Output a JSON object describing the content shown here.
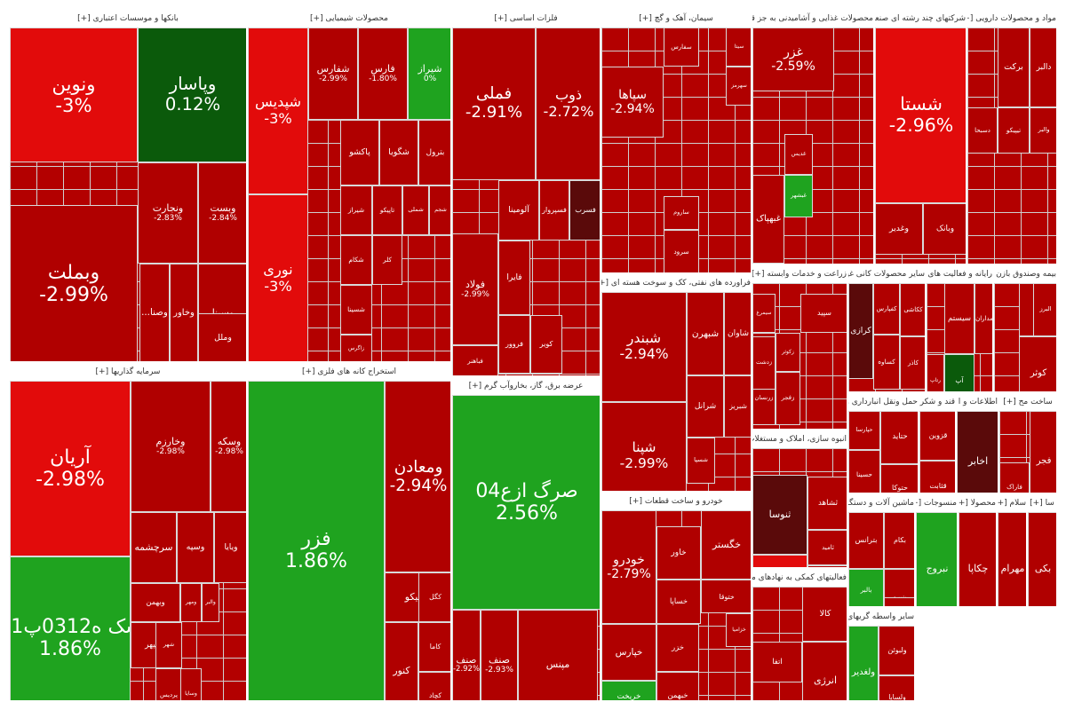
{
  "colors": {
    "deep_red": "#b00000",
    "red": "#d00000",
    "bright_red": "#e20b0b",
    "dark_green": "#0b5a0b",
    "green": "#1fa31f",
    "bright_green": "#2dbd2d",
    "maroon": "#5a0a0a",
    "header_bg": "#ffffff",
    "grid": "#cfcfcf"
  },
  "chart_data": {
    "type": "treemap",
    "sectors": [
      {
        "name": "بانکها و موسسات اعتباری [+]",
        "tiles": [
          {
            "symbol": "ونوین",
            "change": "-3%",
            "color": "bright_red"
          },
          {
            "symbol": "وپاسار",
            "change": "0.12%",
            "color": "dark_green"
          },
          {
            "symbol": "وبملت",
            "change": "-2.99%",
            "color": "deep_red"
          },
          {
            "symbol": "ونجارت",
            "change": "-2.83%",
            "color": "deep_red"
          },
          {
            "symbol": "وبست",
            "change": "-2.84%",
            "color": "deep_red"
          },
          {
            "symbol": "وسینا",
            "change": "",
            "color": "deep_red"
          },
          {
            "symbol": "وخاور",
            "change": "",
            "color": "deep_red"
          },
          {
            "symbol": "...وصنا",
            "change": "",
            "color": "deep_red"
          },
          {
            "symbol": "وملل",
            "change": "",
            "color": "deep_red"
          }
        ]
      },
      {
        "name": "محصولات شیمیایی [+]",
        "tiles": [
          {
            "symbol": "شپدیس",
            "change": "-3%",
            "color": "bright_red"
          },
          {
            "symbol": "نوری",
            "change": "-3%",
            "color": "bright_red"
          },
          {
            "symbol": "شفارس",
            "change": "-2.99%",
            "color": "deep_red"
          },
          {
            "symbol": "فارس",
            "change": "-1.80%",
            "color": "deep_red"
          },
          {
            "symbol": "شیراز",
            "change": "0%",
            "color": "green"
          },
          {
            "symbol": "شگویا",
            "change": "",
            "color": "deep_red"
          },
          {
            "symbol": "پاکشو",
            "change": "",
            "color": "deep_red"
          },
          {
            "symbol": "بترول",
            "change": "",
            "color": "deep_red"
          },
          {
            "symbol": "شجم",
            "change": "",
            "color": "deep_red"
          },
          {
            "symbol": "شملی",
            "change": "",
            "color": "deep_red"
          },
          {
            "symbol": "تاپیکو",
            "change": "",
            "color": "deep_red"
          },
          {
            "symbol": "شیراز",
            "change": "",
            "color": "deep_red"
          },
          {
            "symbol": "کلر",
            "change": "",
            "color": "deep_red"
          },
          {
            "symbol": "شکام",
            "change": "",
            "color": "deep_red"
          },
          {
            "symbol": "شسینا",
            "change": "",
            "color": "deep_red"
          },
          {
            "symbol": "زاگرس",
            "change": "",
            "color": "deep_red"
          }
        ]
      },
      {
        "name": "فلزات اساسی [+]",
        "tiles": [
          {
            "symbol": "فملی",
            "change": "-2.91%",
            "color": "deep_red"
          },
          {
            "symbol": "ذوب",
            "change": "-2.72%",
            "color": "deep_red"
          },
          {
            "symbol": "فولاد",
            "change": "-2.99%",
            "color": "deep_red"
          },
          {
            "symbol": "فسرب",
            "change": "",
            "color": "maroon"
          },
          {
            "symbol": "آلومینا",
            "change": "",
            "color": "deep_red"
          },
          {
            "symbol": "فسپروار",
            "change": "",
            "color": "deep_red"
          },
          {
            "symbol": "فایرا",
            "change": "",
            "color": "deep_red"
          },
          {
            "symbol": "فزوت",
            "change": "",
            "color": "deep_red"
          },
          {
            "symbol": "فروور",
            "change": "",
            "color": "deep_red"
          },
          {
            "symbol": "فباهنر",
            "change": "",
            "color": "deep_red"
          },
          {
            "symbol": "کویر",
            "change": "",
            "color": "deep_red"
          }
        ]
      },
      {
        "name": "سیمان، آهک و گچ [+]",
        "tiles": [
          {
            "symbol": "سهرمز",
            "change": "",
            "color": "deep_red"
          },
          {
            "symbol": "سپاها",
            "change": "-2.94%",
            "color": "deep_red"
          },
          {
            "symbol": "سفارس",
            "change": "",
            "color": "deep_red"
          },
          {
            "symbol": "سرود",
            "change": "",
            "color": "deep_red"
          },
          {
            "symbol": "ساروم",
            "change": "",
            "color": "deep_red"
          },
          {
            "symbol": "سیتا",
            "change": "",
            "color": "deep_red"
          }
        ]
      },
      {
        "name": "محصولات غذایی و آشامیدنی به جز قند و شکر [+]",
        "tiles": [
          {
            "symbol": "غزر",
            "change": "-2.59%",
            "color": "deep_red"
          },
          {
            "symbol": "غدیس",
            "change": "",
            "color": "deep_red"
          },
          {
            "symbol": "غبهپاک",
            "change": "",
            "color": "deep_red"
          },
          {
            "symbol": "غبشهر",
            "change": "",
            "color": "green"
          }
        ]
      },
      {
        "name": "شرکتهای چند رشته ای صنعتی [+]",
        "tiles": [
          {
            "symbol": "شستا",
            "change": "-2.96%",
            "color": "bright_red"
          },
          {
            "symbol": "وبانک",
            "change": "",
            "color": "deep_red"
          },
          {
            "symbol": "وغدیر",
            "change": "",
            "color": "deep_red"
          }
        ]
      },
      {
        "name": "مواد و محصولات دارویی [+]",
        "tiles": [
          {
            "symbol": "دالبر",
            "change": "",
            "color": "deep_red"
          },
          {
            "symbol": "برکت",
            "change": "",
            "color": "deep_red"
          },
          {
            "symbol": "تیپیکو",
            "change": "",
            "color": "deep_red"
          },
          {
            "symbol": "دسبحا",
            "change": "",
            "color": "deep_red"
          },
          {
            "symbol": "والبر",
            "change": "",
            "color": "deep_red"
          }
        ]
      },
      {
        "name": "سرمایه گذاریها [+]",
        "tiles": [
          {
            "symbol": "آریان",
            "change": "-2.98%",
            "color": "bright_red"
          },
          {
            "symbol": "وخارزم",
            "change": "-2.98%",
            "color": "deep_red"
          },
          {
            "symbol": "وسکه",
            "change": "-2.98%",
            "color": "deep_red"
          },
          {
            "symbol": "سک ه0312پ01",
            "change": "1.86%",
            "color": "green"
          },
          {
            "symbol": "سرچشمه",
            "change": "",
            "color": "deep_red"
          },
          {
            "symbol": "وسپه",
            "change": "",
            "color": "deep_red"
          },
          {
            "symbol": "ویایا",
            "change": "",
            "color": "deep_red"
          },
          {
            "symbol": "وبهمن",
            "change": "",
            "color": "deep_red"
          },
          {
            "symbol": "ومهر",
            "change": "",
            "color": "deep_red"
          },
          {
            "symbol": "والبر",
            "change": "",
            "color": "deep_red"
          },
          {
            "symbol": "وسپهر",
            "change": "",
            "color": "deep_red"
          },
          {
            "symbol": "شهر",
            "change": "",
            "color": "deep_red"
          },
          {
            "symbol": "پردیس",
            "change": "",
            "color": "deep_red"
          },
          {
            "symbol": "وسایا",
            "change": "",
            "color": "deep_red"
          }
        ]
      },
      {
        "name": "استخراج کانه های فلزی [+]",
        "tiles": [
          {
            "symbol": "فزر",
            "change": "1.86%",
            "color": "green"
          },
          {
            "symbol": "ومعادن",
            "change": "-2.94%",
            "color": "deep_red"
          },
          {
            "symbol": "تاصیکو",
            "change": "",
            "color": "deep_red"
          },
          {
            "symbol": "کگل",
            "change": "",
            "color": "deep_red"
          },
          {
            "symbol": "کاما",
            "change": "",
            "color": "deep_red"
          },
          {
            "symbol": "کچاد",
            "change": "",
            "color": "deep_red"
          },
          {
            "symbol": "کنور",
            "change": "",
            "color": "deep_red"
          }
        ]
      },
      {
        "name": "عرضه برق، گاز، بخاروآب گرم [+]",
        "tiles": [
          {
            "symbol": "صرگ ازع04",
            "change": "2.56%",
            "color": "green"
          },
          {
            "symbol": "صنف",
            "change": "-2.92%",
            "color": "deep_red"
          },
          {
            "symbol": "صنف",
            "change": "-2.93%",
            "color": "deep_red"
          },
          {
            "symbol": "مپنس",
            "change": "",
            "color": "deep_red"
          }
        ]
      },
      {
        "name": "فراورده های نفتی، کک و سوخت هسته ای [+]",
        "tiles": [
          {
            "symbol": "شبندر",
            "change": "-2.94%",
            "color": "deep_red"
          },
          {
            "symbol": "شپنا",
            "change": "-2.99%",
            "color": "deep_red"
          },
          {
            "symbol": "شبهرن",
            "change": "",
            "color": "deep_red"
          },
          {
            "symbol": "شاوان",
            "change": "",
            "color": "deep_red"
          },
          {
            "symbol": "شبریز",
            "change": "",
            "color": "deep_red"
          },
          {
            "symbol": "شسپا",
            "change": "",
            "color": "deep_red"
          },
          {
            "symbol": "شرانل",
            "change": "",
            "color": "deep_red"
          }
        ]
      },
      {
        "name": "خودرو و ساخت قطعات [+]",
        "tiles": [
          {
            "symbol": "خودرو",
            "change": "-2.79%",
            "color": "deep_red"
          },
          {
            "symbol": "خگستر",
            "change": "",
            "color": "deep_red"
          },
          {
            "symbol": "خساپا",
            "change": "",
            "color": "deep_red"
          },
          {
            "symbol": "خزر",
            "change": "",
            "color": "deep_red"
          },
          {
            "symbol": "ختوقا",
            "change": "",
            "color": "deep_red"
          },
          {
            "symbol": "خکار",
            "change": "",
            "color": "deep_red"
          },
          {
            "symbol": "خپارس",
            "change": "",
            "color": "deep_red"
          },
          {
            "symbol": "خزامیا",
            "change": "",
            "color": "deep_red"
          },
          {
            "symbol": "خاور",
            "change": "",
            "color": "deep_red"
          },
          {
            "symbol": "خریخت",
            "change": "3.00%",
            "color": "green"
          },
          {
            "symbol": "خبهمن",
            "change": "",
            "color": "deep_red"
          }
        ]
      },
      {
        "name": "زراعت و خدمات وابسته [+]",
        "tiles": [
          {
            "symbol": "سیمرغ",
            "change": "",
            "color": "deep_red"
          },
          {
            "symbol": "زماهان",
            "change": "",
            "color": "deep_red"
          },
          {
            "symbol": "زرنسان",
            "change": "",
            "color": "deep_red"
          },
          {
            "symbol": "زکوثر",
            "change": "",
            "color": "deep_red"
          },
          {
            "symbol": "زدشت",
            "change": "",
            "color": "deep_red"
          },
          {
            "symbol": "زفجر",
            "change": "",
            "color": "deep_red"
          },
          {
            "symbol": "سپید",
            "change": "",
            "color": "deep_red"
          }
        ]
      },
      {
        "name": "سایر محصولات کانی غیر [+]",
        "tiles": [
          {
            "symbol": "کرازی",
            "change": "",
            "color": "maroon"
          },
          {
            "symbol": "کفپارس",
            "change": "",
            "color": "deep_red"
          },
          {
            "symbol": "کساوه",
            "change": "",
            "color": "deep_red"
          },
          {
            "symbol": "کاذر",
            "change": "",
            "color": "deep_red"
          },
          {
            "symbol": "ککاشی",
            "change": "",
            "color": "deep_red"
          }
        ]
      },
      {
        "name": "رایانه و فعالیت های و [+]",
        "tiles": [
          {
            "symbol": "سیستم",
            "change": "",
            "color": "deep_red"
          },
          {
            "symbol": "آپ",
            "change": "",
            "color": "dark_green"
          },
          {
            "symbol": "رتاپ",
            "change": "",
            "color": "deep_red"
          },
          {
            "symbol": "مداران",
            "change": "",
            "color": "deep_red"
          }
        ]
      },
      {
        "name": "بیمه وصندوق بازن [+]",
        "tiles": [
          {
            "symbol": "دانا",
            "change": "",
            "color": "deep_red"
          },
          {
            "symbol": "البرز",
            "change": "",
            "color": "deep_red"
          },
          {
            "symbol": "کوثر",
            "change": "",
            "color": "deep_red"
          }
        ]
      },
      {
        "name": "انبوه سازی، املاک و مستغلات [+]",
        "tiles": [
          {
            "symbol": "ثشاهد",
            "change": "",
            "color": "deep_red"
          },
          {
            "symbol": "ثامید",
            "change": "",
            "color": "deep_red"
          },
          {
            "symbol": "ثنوسا",
            "change": "",
            "color": "maroon"
          },
          {
            "symbol": "ثباغ",
            "change": "",
            "color": "deep_red"
          },
          {
            "symbol": "ثنهسار",
            "change": "",
            "color": "bright_red"
          }
        ]
      },
      {
        "name": "حمل ونقل انبارداری و [+]",
        "tiles": [
          {
            "symbol": "حتاید",
            "change": "",
            "color": "deep_red"
          },
          {
            "symbol": "حپارسا",
            "change": "",
            "color": "deep_red"
          },
          {
            "symbol": "حسینا",
            "change": "",
            "color": "deep_red"
          },
          {
            "symbol": "حتوکا",
            "change": "",
            "color": "deep_red"
          }
        ]
      },
      {
        "name": "قند و شکر [+]",
        "tiles": [
          {
            "symbol": "قزوین",
            "change": "",
            "color": "deep_red"
          },
          {
            "symbol": "قثابت",
            "change": "",
            "color": "deep_red"
          }
        ]
      },
      {
        "name": "اطلاعات و ا [+]",
        "tiles": [
          {
            "symbol": "اخابر",
            "change": "",
            "color": "maroon"
          }
        ]
      },
      {
        "name": "ساخت مح [+]",
        "tiles": [
          {
            "symbol": "فاراک",
            "change": "",
            "color": "deep_red"
          },
          {
            "symbol": "فجر",
            "change": "",
            "color": "deep_red"
          }
        ]
      },
      {
        "name": "ماشین آلات و دستگاه [+]",
        "tiles": [
          {
            "symbol": "بترانس",
            "change": "",
            "color": "deep_red"
          },
          {
            "symbol": "بکام",
            "change": "",
            "color": "deep_red"
          },
          {
            "symbol": "بنیرو",
            "change": "",
            "color": "deep_red"
          },
          {
            "symbol": "بالبر",
            "change": "",
            "color": "green"
          },
          {
            "symbol": "بموتو",
            "change": "",
            "color": "deep_red"
          },
          {
            "symbol": "بیوپا",
            "change": "",
            "color": "deep_red"
          }
        ]
      },
      {
        "name": "منسوجات [+]",
        "tiles": [
          {
            "symbol": "نبروج",
            "change": "",
            "color": "green"
          }
        ]
      },
      {
        "name": "محصولا [+]",
        "tiles": [
          {
            "symbol": "چکاپا",
            "change": "",
            "color": "deep_red"
          }
        ]
      },
      {
        "name": "سلام [+]",
        "tiles": [
          {
            "symbol": "مهرام",
            "change": "",
            "color": "deep_red"
          }
        ]
      },
      {
        "name": "سا [+]",
        "tiles": [
          {
            "symbol": "بکی",
            "change": "",
            "color": "deep_red"
          }
        ]
      },
      {
        "name": "فعالیتهای کمکی به نهادهای مالی [+]",
        "tiles": [
          {
            "symbol": "کالا",
            "change": "",
            "color": "deep_red"
          },
          {
            "symbol": "اتفا",
            "change": "",
            "color": "deep_red"
          },
          {
            "symbol": "انرژی",
            "change": "",
            "color": "deep_red"
          }
        ]
      },
      {
        "name": "سایر واسطه گریهای م [+]",
        "tiles": [
          {
            "symbol": "ولغدیر",
            "change": "",
            "color": "green"
          },
          {
            "symbol": "ولبوئن",
            "change": "",
            "color": "deep_red"
          },
          {
            "symbol": "ولساپا",
            "change": "",
            "color": "deep_red"
          }
        ]
      }
    ]
  }
}
